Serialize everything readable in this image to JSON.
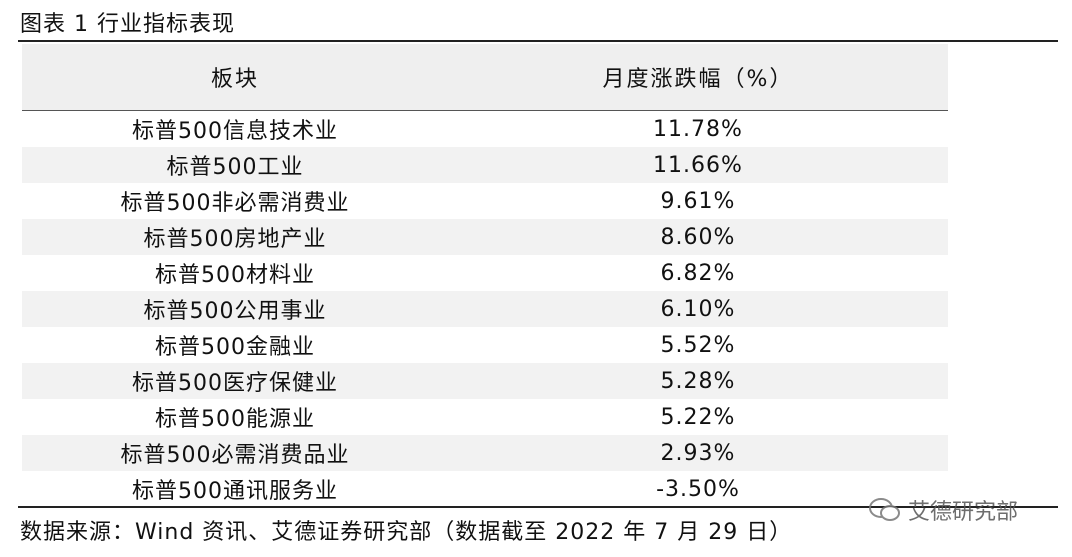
{
  "header": {
    "title": "图表 1 行业指标表现"
  },
  "table": {
    "columns": [
      "板块",
      "月度涨跌幅（%）"
    ],
    "rows": [
      [
        "标普500信息技术业",
        "11.78%"
      ],
      [
        "标普500工业",
        "11.66%"
      ],
      [
        "标普500非必需消费业",
        "9.61%"
      ],
      [
        "标普500房地产业",
        "8.60%"
      ],
      [
        "标普500材料业",
        "6.82%"
      ],
      [
        "标普500公用事业",
        "6.10%"
      ],
      [
        "标普500金融业",
        "5.52%"
      ],
      [
        "标普500医疗保健业",
        "5.28%"
      ],
      [
        "标普500能源业",
        "5.22%"
      ],
      [
        "标普500必需消费品业",
        "2.93%"
      ],
      [
        "标普500通讯服务业",
        "-3.50%"
      ]
    ]
  },
  "footer": {
    "source": "数据来源：Wind 资讯、艾德证券研究部（数据截至 2022 年 7 月 29 日）"
  },
  "watermark": "艾德研究部"
}
